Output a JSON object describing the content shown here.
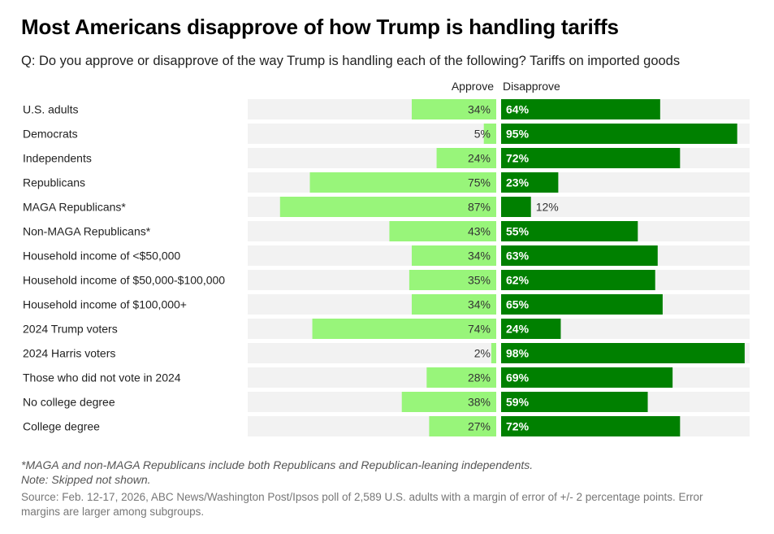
{
  "title": "Most Americans disapprove of how Trump is handling tariffs",
  "subtitle": "Q: Do you approve or disapprove of the way Trump is handling each of the following? Tariffs on imported goods",
  "legend": {
    "approve": "Approve",
    "disapprove": "Disapprove"
  },
  "colors": {
    "approve": "#98f57a",
    "disapprove": "#008000",
    "track": "#f2f2f2"
  },
  "notes": {
    "maga": "*MAGA and non-MAGA Republicans include both Republicans and Republican-leaning independents.",
    "skipped": "Note: Skipped not shown."
  },
  "source": "Source: Feb. 12-17, 2026, ABC News/Washington Post/Ipsos poll of 2,589 U.S. adults with a margin of error of +/- 2 percentage points. Error margins are larger among subgroups.",
  "chart_data": {
    "type": "bar",
    "orientation": "horizontal-diverging",
    "title": "Most Americans disapprove of how Trump is handling tariffs",
    "xlim": [
      0,
      100
    ],
    "categories": [
      "U.S. adults",
      "Democrats",
      "Independents",
      "Republicans",
      "MAGA Republicans*",
      "Non-MAGA Republicans*",
      "Household income of <$50,000",
      "Household income of $50,000-$100,000",
      "Household income of $100,000+",
      "2024 Trump voters",
      "2024 Harris voters",
      "Those who did not vote in 2024",
      "No college degree",
      "College degree"
    ],
    "series": [
      {
        "name": "Approve",
        "values": [
          34,
          5,
          24,
          75,
          87,
          43,
          34,
          35,
          34,
          74,
          2,
          28,
          38,
          27
        ]
      },
      {
        "name": "Disapprove",
        "values": [
          64,
          95,
          72,
          23,
          12,
          55,
          63,
          62,
          65,
          24,
          98,
          69,
          59,
          72
        ]
      }
    ]
  }
}
